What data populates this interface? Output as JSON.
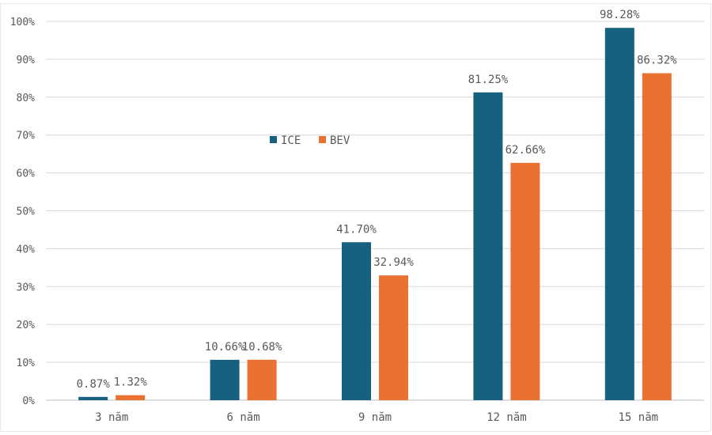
{
  "chart_data": {
    "type": "bar",
    "title": "",
    "xlabel": "",
    "ylabel": "",
    "categories": [
      "3 năm",
      "6 năm",
      "9 năm",
      "12 năm",
      "15 năm"
    ],
    "series": [
      {
        "name": "ICE",
        "color": "#17607f",
        "values": [
          0.87,
          10.66,
          41.7,
          81.25,
          98.28
        ],
        "labels": [
          "0.87%",
          "10.66%",
          "41.70%",
          "81.25%",
          "98.28%"
        ]
      },
      {
        "name": "BEV",
        "color": "#e97132",
        "values": [
          1.32,
          10.68,
          32.94,
          62.66,
          86.32
        ],
        "labels": [
          "1.32%",
          "10.68%",
          "32.94%",
          "62.66%",
          "86.32%"
        ]
      }
    ],
    "ylim": [
      0,
      100
    ],
    "yticks": [
      "0%",
      "10%",
      "20%",
      "30%",
      "40%",
      "50%",
      "60%",
      "70%",
      "80%",
      "90%",
      "100%"
    ],
    "grid": true,
    "legend": "inside-top-left"
  }
}
